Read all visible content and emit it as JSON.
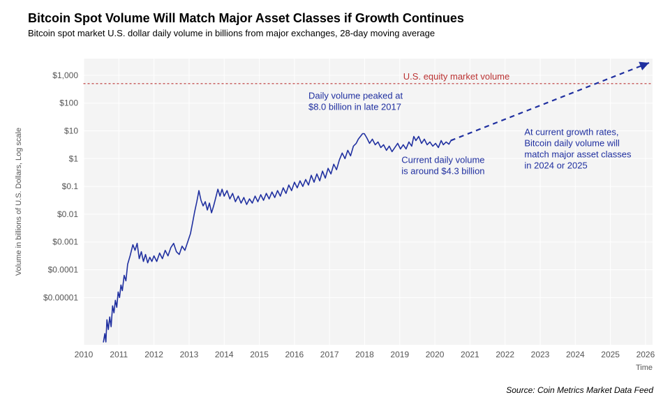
{
  "title": "Bitcoin Spot Volume Will Match Major Asset Classes if Growth Continues",
  "subtitle": "Bitcoin spot market U.S. dollar daily volume in billions from major exchanges, 28-day moving average",
  "source": "Source: Coin Metrics Market Data Feed",
  "chart": {
    "type": "line-log",
    "background_color": "#ffffff",
    "plot_background_color": "#f4f4f4",
    "grid_color": "#ffffff",
    "grid_line_width": 1,
    "x_axis": {
      "label": "Time",
      "label_fontsize": 11,
      "ticks": [
        2010,
        2011,
        2012,
        2013,
        2014,
        2015,
        2016,
        2017,
        2018,
        2019,
        2020,
        2021,
        2022,
        2023,
        2024,
        2025,
        2026
      ],
      "xlim": [
        2010,
        2026.2
      ],
      "tick_fontsize": 12,
      "tick_color": "#555555"
    },
    "y_axis": {
      "label": "Volume in billions of U.S. Dollars, Log scale",
      "label_fontsize": 11,
      "scale": "log",
      "ylim_exp": [
        -6.7,
        3.6
      ],
      "ticks": [
        {
          "exp": -5,
          "label": "$0.00001"
        },
        {
          "exp": -4,
          "label": "$0.0001"
        },
        {
          "exp": -3,
          "label": "$0.001"
        },
        {
          "exp": -2,
          "label": "$0.01"
        },
        {
          "exp": -1,
          "label": "$0.1"
        },
        {
          "exp": 0,
          "label": "$1"
        },
        {
          "exp": 1,
          "label": "$10"
        },
        {
          "exp": 2,
          "label": "$100"
        },
        {
          "exp": 3,
          "label": "$1,000"
        }
      ],
      "tick_fontsize": 12,
      "tick_color": "#555555"
    },
    "reference_line": {
      "value_exp": 2.7,
      "color": "#bb3333",
      "style": "dotted",
      "width": 1.2,
      "label": "U.S. equity market volume",
      "label_x": 2019.1,
      "label_color": "#bb3333",
      "label_fontsize": 13
    },
    "projection_line": {
      "start": {
        "x": 2020.45,
        "y_exp": 0.65
      },
      "end": {
        "x": 2026.1,
        "y_exp": 3.45
      },
      "color": "#2030a0",
      "style": "dashed",
      "width": 2.2
    },
    "series": {
      "color": "#2030a0",
      "width": 1.6,
      "data": [
        [
          2010.56,
          -6.6
        ],
        [
          2010.6,
          -6.3
        ],
        [
          2010.63,
          -6.6
        ],
        [
          2010.66,
          -5.8
        ],
        [
          2010.7,
          -6.15
        ],
        [
          2010.74,
          -5.7
        ],
        [
          2010.78,
          -6.05
        ],
        [
          2010.82,
          -5.3
        ],
        [
          2010.86,
          -5.55
        ],
        [
          2010.9,
          -5.1
        ],
        [
          2010.94,
          -5.35
        ],
        [
          2010.98,
          -4.8
        ],
        [
          2011.02,
          -5.0
        ],
        [
          2011.06,
          -4.55
        ],
        [
          2011.1,
          -4.75
        ],
        [
          2011.15,
          -4.2
        ],
        [
          2011.2,
          -4.4
        ],
        [
          2011.25,
          -3.8
        ],
        [
          2011.32,
          -3.5
        ],
        [
          2011.4,
          -3.1
        ],
        [
          2011.46,
          -3.3
        ],
        [
          2011.52,
          -3.05
        ],
        [
          2011.58,
          -3.6
        ],
        [
          2011.64,
          -3.35
        ],
        [
          2011.7,
          -3.7
        ],
        [
          2011.76,
          -3.45
        ],
        [
          2011.82,
          -3.75
        ],
        [
          2011.88,
          -3.55
        ],
        [
          2011.94,
          -3.7
        ],
        [
          2012.0,
          -3.5
        ],
        [
          2012.08,
          -3.7
        ],
        [
          2012.16,
          -3.4
        ],
        [
          2012.24,
          -3.6
        ],
        [
          2012.32,
          -3.3
        ],
        [
          2012.4,
          -3.5
        ],
        [
          2012.48,
          -3.2
        ],
        [
          2012.56,
          -3.05
        ],
        [
          2012.64,
          -3.35
        ],
        [
          2012.72,
          -3.45
        ],
        [
          2012.8,
          -3.15
        ],
        [
          2012.88,
          -3.3
        ],
        [
          2012.96,
          -3.0
        ],
        [
          2013.04,
          -2.7
        ],
        [
          2013.1,
          -2.3
        ],
        [
          2013.16,
          -1.9
        ],
        [
          2013.22,
          -1.55
        ],
        [
          2013.28,
          -1.15
        ],
        [
          2013.34,
          -1.5
        ],
        [
          2013.4,
          -1.7
        ],
        [
          2013.46,
          -1.55
        ],
        [
          2013.52,
          -1.85
        ],
        [
          2013.58,
          -1.6
        ],
        [
          2013.64,
          -1.95
        ],
        [
          2013.7,
          -1.7
        ],
        [
          2013.76,
          -1.4
        ],
        [
          2013.82,
          -1.1
        ],
        [
          2013.88,
          -1.35
        ],
        [
          2013.94,
          -1.1
        ],
        [
          2014.0,
          -1.35
        ],
        [
          2014.08,
          -1.15
        ],
        [
          2014.16,
          -1.45
        ],
        [
          2014.24,
          -1.25
        ],
        [
          2014.32,
          -1.55
        ],
        [
          2014.4,
          -1.35
        ],
        [
          2014.48,
          -1.6
        ],
        [
          2014.56,
          -1.4
        ],
        [
          2014.64,
          -1.65
        ],
        [
          2014.72,
          -1.45
        ],
        [
          2014.8,
          -1.6
        ],
        [
          2014.88,
          -1.35
        ],
        [
          2014.96,
          -1.55
        ],
        [
          2015.04,
          -1.3
        ],
        [
          2015.12,
          -1.5
        ],
        [
          2015.2,
          -1.25
        ],
        [
          2015.28,
          -1.45
        ],
        [
          2015.36,
          -1.2
        ],
        [
          2015.44,
          -1.4
        ],
        [
          2015.52,
          -1.15
        ],
        [
          2015.6,
          -1.35
        ],
        [
          2015.68,
          -1.05
        ],
        [
          2015.76,
          -1.25
        ],
        [
          2015.84,
          -0.95
        ],
        [
          2015.92,
          -1.15
        ],
        [
          2016.0,
          -0.85
        ],
        [
          2016.08,
          -1.05
        ],
        [
          2016.16,
          -0.8
        ],
        [
          2016.24,
          -1.0
        ],
        [
          2016.32,
          -0.75
        ],
        [
          2016.4,
          -0.95
        ],
        [
          2016.48,
          -0.6
        ],
        [
          2016.56,
          -0.85
        ],
        [
          2016.64,
          -0.55
        ],
        [
          2016.72,
          -0.8
        ],
        [
          2016.8,
          -0.45
        ],
        [
          2016.88,
          -0.7
        ],
        [
          2016.96,
          -0.35
        ],
        [
          2017.04,
          -0.55
        ],
        [
          2017.12,
          -0.2
        ],
        [
          2017.2,
          -0.4
        ],
        [
          2017.28,
          -0.05
        ],
        [
          2017.36,
          0.2
        ],
        [
          2017.44,
          0.0
        ],
        [
          2017.52,
          0.3
        ],
        [
          2017.6,
          0.1
        ],
        [
          2017.68,
          0.45
        ],
        [
          2017.76,
          0.55
        ],
        [
          2017.82,
          0.7
        ],
        [
          2017.88,
          0.8
        ],
        [
          2017.94,
          0.9
        ],
        [
          2017.99,
          0.9
        ],
        [
          2018.06,
          0.75
        ],
        [
          2018.14,
          0.55
        ],
        [
          2018.22,
          0.7
        ],
        [
          2018.3,
          0.5
        ],
        [
          2018.38,
          0.6
        ],
        [
          2018.46,
          0.4
        ],
        [
          2018.54,
          0.5
        ],
        [
          2018.62,
          0.3
        ],
        [
          2018.7,
          0.45
        ],
        [
          2018.78,
          0.25
        ],
        [
          2018.86,
          0.4
        ],
        [
          2018.94,
          0.55
        ],
        [
          2019.02,
          0.35
        ],
        [
          2019.1,
          0.5
        ],
        [
          2019.18,
          0.35
        ],
        [
          2019.26,
          0.6
        ],
        [
          2019.34,
          0.45
        ],
        [
          2019.4,
          0.8
        ],
        [
          2019.46,
          0.65
        ],
        [
          2019.54,
          0.8
        ],
        [
          2019.62,
          0.55
        ],
        [
          2019.7,
          0.7
        ],
        [
          2019.78,
          0.5
        ],
        [
          2019.86,
          0.6
        ],
        [
          2019.94,
          0.45
        ],
        [
          2020.02,
          0.55
        ],
        [
          2020.1,
          0.4
        ],
        [
          2020.18,
          0.65
        ],
        [
          2020.24,
          0.5
        ],
        [
          2020.32,
          0.6
        ],
        [
          2020.4,
          0.52
        ],
        [
          2020.45,
          0.63
        ]
      ]
    },
    "annotations": [
      {
        "lines": [
          "Daily volume peaked at",
          "$8.0 billion in late 2017"
        ],
        "x": 2016.4,
        "y_exp": 2.15,
        "color": "#2030a0",
        "fontsize": 13
      },
      {
        "lines": [
          "Current daily volume",
          "is around $4.3 billion"
        ],
        "x": 2019.05,
        "y_exp": -0.15,
        "color": "#2030a0",
        "fontsize": 13
      },
      {
        "lines": [
          "At current growth rates,",
          "Bitcoin daily volume will",
          "match major asset classes",
          "in 2024 or 2025"
        ],
        "x": 2022.55,
        "y_exp": 0.85,
        "color": "#2030a0",
        "fontsize": 13
      }
    ]
  }
}
